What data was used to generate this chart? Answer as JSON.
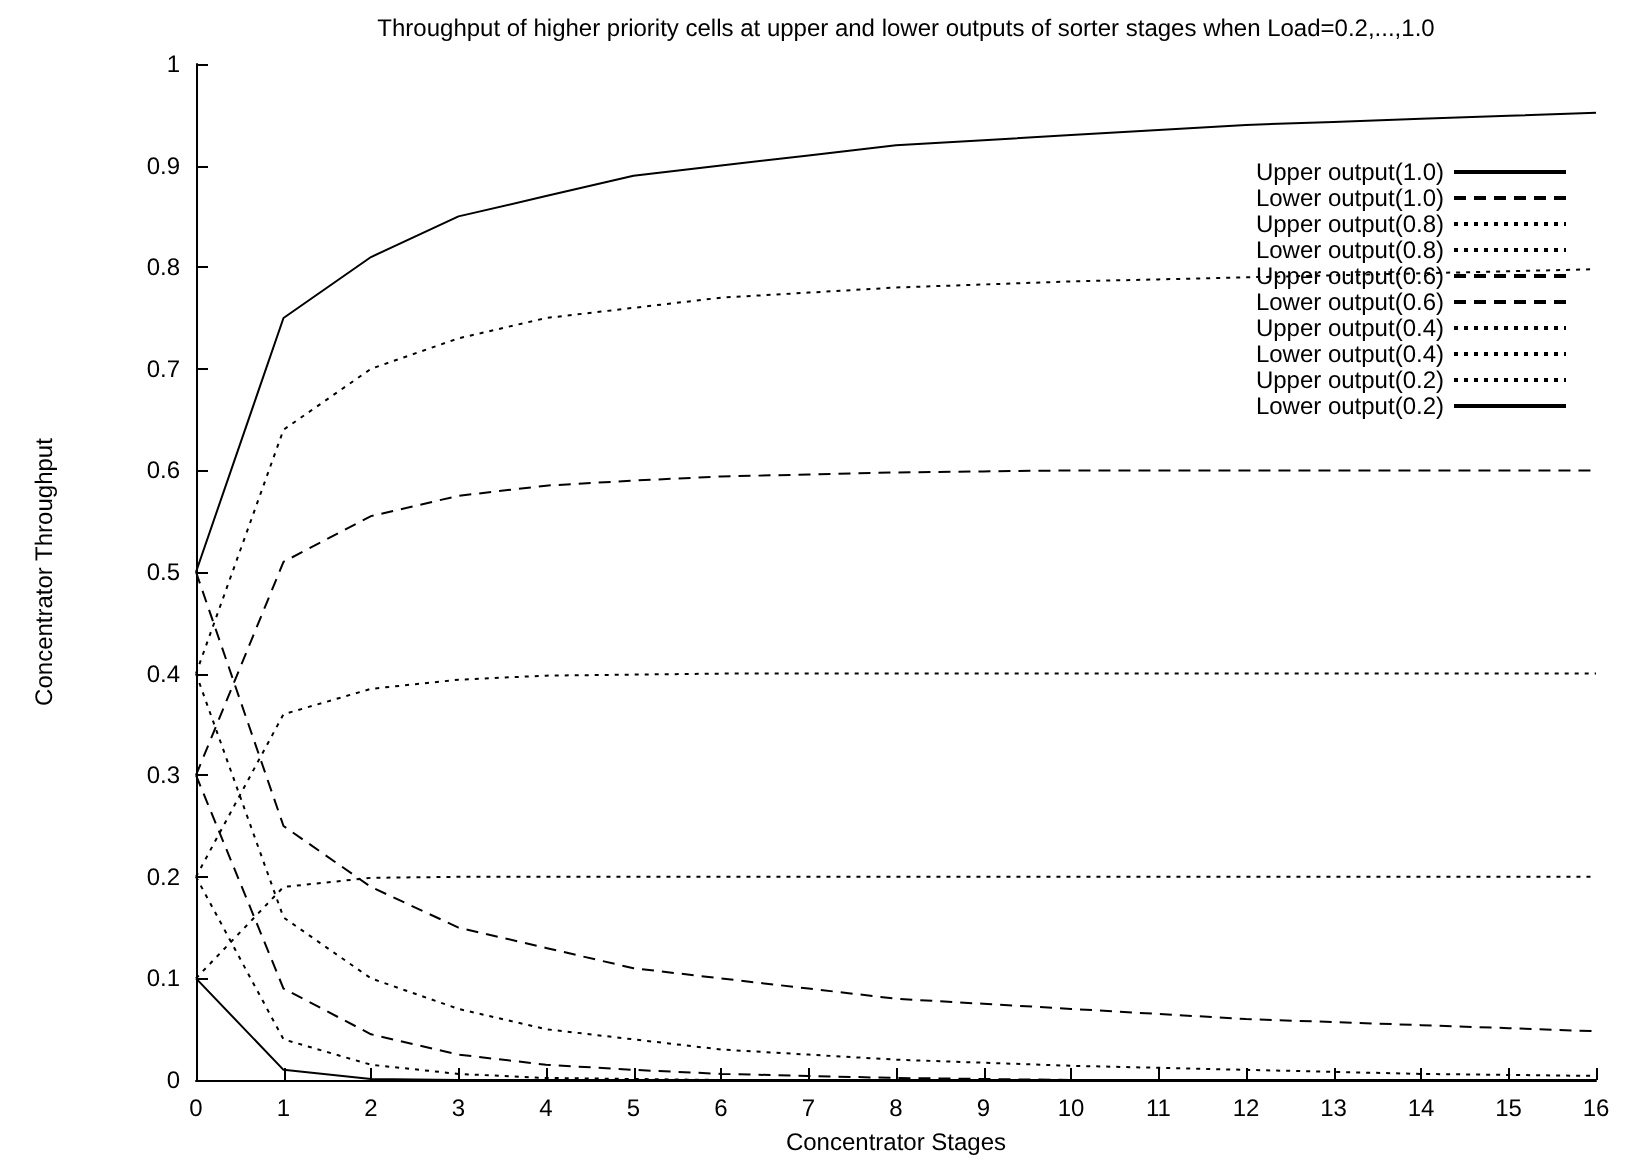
{
  "chart_data": {
    "type": "line",
    "title": "Throughput of higher priority cells at upper and lower outputs of sorter stages when Load=0.2,...,1.0",
    "xlabel": "Concentrator Stages",
    "ylabel": "Concentrator Throughput",
    "x": [
      0,
      1,
      2,
      3,
      4,
      5,
      6,
      7,
      8,
      9,
      10,
      11,
      12,
      13,
      14,
      15,
      16
    ],
    "xlim": [
      0,
      16
    ],
    "xticks": [
      0,
      1,
      2,
      3,
      4,
      5,
      6,
      7,
      8,
      9,
      10,
      11,
      12,
      13,
      14,
      15,
      16
    ],
    "ylim": [
      0,
      1
    ],
    "yticks": [
      0,
      0.1,
      0.2,
      0.3,
      0.4,
      0.5,
      0.6,
      0.7,
      0.8,
      0.9,
      1
    ],
    "grid": false,
    "legend": "top right",
    "marker": "none",
    "series": [
      {
        "name": "Upper output(1.0)",
        "color": "#000000",
        "line_style": "solid",
        "values": [
          0.5,
          0.75,
          0.81,
          0.85,
          0.87,
          0.89,
          0.9,
          0.91,
          0.92,
          0.925,
          0.93,
          0.935,
          0.94,
          0.943,
          0.946,
          0.949,
          0.952
        ]
      },
      {
        "name": "Lower output(1.0)",
        "color": "#000000",
        "line_style": "dashed",
        "values": [
          0.5,
          0.25,
          0.19,
          0.15,
          0.13,
          0.11,
          0.1,
          0.09,
          0.08,
          0.075,
          0.07,
          0.065,
          0.06,
          0.057,
          0.054,
          0.051,
          0.048
        ]
      },
      {
        "name": "Upper output(0.8)",
        "color": "#000000",
        "line_style": "dotted",
        "values": [
          0.4,
          0.64,
          0.7,
          0.73,
          0.75,
          0.76,
          0.77,
          0.775,
          0.78,
          0.783,
          0.786,
          0.788,
          0.79,
          0.792,
          0.794,
          0.796,
          0.798
        ]
      },
      {
        "name": "Lower output(0.8)",
        "color": "#000000",
        "line_style": "dotted",
        "values": [
          0.4,
          0.16,
          0.1,
          0.07,
          0.05,
          0.04,
          0.03,
          0.025,
          0.02,
          0.017,
          0.014,
          0.012,
          0.01,
          0.008,
          0.006,
          0.005,
          0.004
        ]
      },
      {
        "name": "Upper output(0.6)",
        "color": "#000000",
        "line_style": "dashed",
        "values": [
          0.3,
          0.51,
          0.555,
          0.575,
          0.585,
          0.59,
          0.594,
          0.596,
          0.598,
          0.599,
          0.6,
          0.6,
          0.6,
          0.6,
          0.6,
          0.6,
          0.6
        ]
      },
      {
        "name": "Lower output(0.6)",
        "color": "#000000",
        "line_style": "dashed",
        "values": [
          0.3,
          0.09,
          0.045,
          0.025,
          0.015,
          0.01,
          0.006,
          0.004,
          0.002,
          0.001,
          0,
          0,
          0,
          0,
          0,
          0,
          0
        ]
      },
      {
        "name": "Upper output(0.4)",
        "color": "#000000",
        "line_style": "dotted",
        "values": [
          0.2,
          0.36,
          0.385,
          0.394,
          0.398,
          0.399,
          0.4,
          0.4,
          0.4,
          0.4,
          0.4,
          0.4,
          0.4,
          0.4,
          0.4,
          0.4,
          0.4
        ]
      },
      {
        "name": "Lower output(0.4)",
        "color": "#000000",
        "line_style": "dotted",
        "values": [
          0.2,
          0.04,
          0.015,
          0.006,
          0.002,
          0.001,
          0,
          0,
          0,
          0,
          0,
          0,
          0,
          0,
          0,
          0,
          0
        ]
      },
      {
        "name": "Upper output(0.2)",
        "color": "#000000",
        "line_style": "dotted",
        "values": [
          0.1,
          0.19,
          0.199,
          0.2,
          0.2,
          0.2,
          0.2,
          0.2,
          0.2,
          0.2,
          0.2,
          0.2,
          0.2,
          0.2,
          0.2,
          0.2,
          0.2
        ]
      },
      {
        "name": "Lower output(0.2)",
        "color": "#000000",
        "line_style": "solid",
        "values": [
          0.1,
          0.01,
          0.001,
          0,
          0,
          0,
          0,
          0,
          0,
          0,
          0,
          0,
          0,
          0,
          0,
          0,
          0
        ]
      }
    ]
  }
}
